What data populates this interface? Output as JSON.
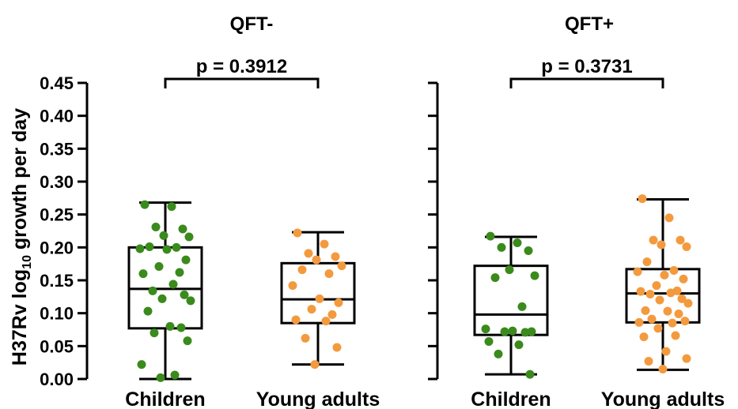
{
  "chart_data": {
    "type": "boxplot",
    "ylabel": "H37Rv log",
    "ylabel_sub": "10",
    "ylabel_suffix": " growth per day",
    "ylim": [
      0,
      0.45
    ],
    "yticks": [
      "0.00",
      "0.05",
      "0.10",
      "0.15",
      "0.20",
      "0.25",
      "0.30",
      "0.35",
      "0.40",
      "0.45"
    ],
    "colors": {
      "children": "#3a8a1c",
      "young_adults": "#f39a3e"
    },
    "panels": [
      {
        "title": "QFT-",
        "pvalue": "p = 0.3912",
        "groups": [
          {
            "name": "Children",
            "color_key": "children",
            "min": 0.0,
            "q1": 0.077,
            "median": 0.137,
            "q3": 0.2,
            "max": 0.268,
            "points": [
              0.265,
              0.262,
              0.231,
              0.228,
              0.218,
              0.216,
              0.201,
              0.2,
              0.198,
              0.197,
              0.181,
              0.171,
              0.162,
              0.16,
              0.144,
              0.134,
              0.128,
              0.122,
              0.119,
              0.103,
              0.08,
              0.078,
              0.07,
              0.058,
              0.022,
              0.006,
              0.002
            ]
          },
          {
            "name": "Young adults",
            "color_key": "young_adults",
            "min": 0.022,
            "q1": 0.085,
            "median": 0.121,
            "q3": 0.176,
            "max": 0.223,
            "points": [
              0.222,
              0.205,
              0.191,
              0.186,
              0.181,
              0.172,
              0.166,
              0.16,
              0.142,
              0.122,
              0.116,
              0.106,
              0.098,
              0.09,
              0.088,
              0.062,
              0.048,
              0.022
            ]
          }
        ]
      },
      {
        "title": "QFT+",
        "pvalue": "p = 0.3731",
        "groups": [
          {
            "name": "Children",
            "color_key": "children",
            "min": 0.007,
            "q1": 0.067,
            "median": 0.098,
            "q3": 0.172,
            "max": 0.216,
            "points": [
              0.217,
              0.207,
              0.2,
              0.195,
              0.166,
              0.157,
              0.154,
              0.11,
              0.076,
              0.073,
              0.072,
              0.072,
              0.071,
              0.057,
              0.052,
              0.038,
              0.007
            ]
          },
          {
            "name": "Young adults",
            "color_key": "young_adults",
            "min": 0.014,
            "q1": 0.086,
            "median": 0.13,
            "q3": 0.167,
            "max": 0.273,
            "points": [
              0.274,
              0.245,
              0.211,
              0.211,
              0.204,
              0.201,
              0.178,
              0.165,
              0.163,
              0.158,
              0.152,
              0.142,
              0.134,
              0.133,
              0.131,
              0.129,
              0.122,
              0.12,
              0.115,
              0.104,
              0.103,
              0.099,
              0.091,
              0.088,
              0.086,
              0.085,
              0.077,
              0.066,
              0.064,
              0.042,
              0.031,
              0.027,
              0.015
            ]
          }
        ]
      }
    ]
  }
}
